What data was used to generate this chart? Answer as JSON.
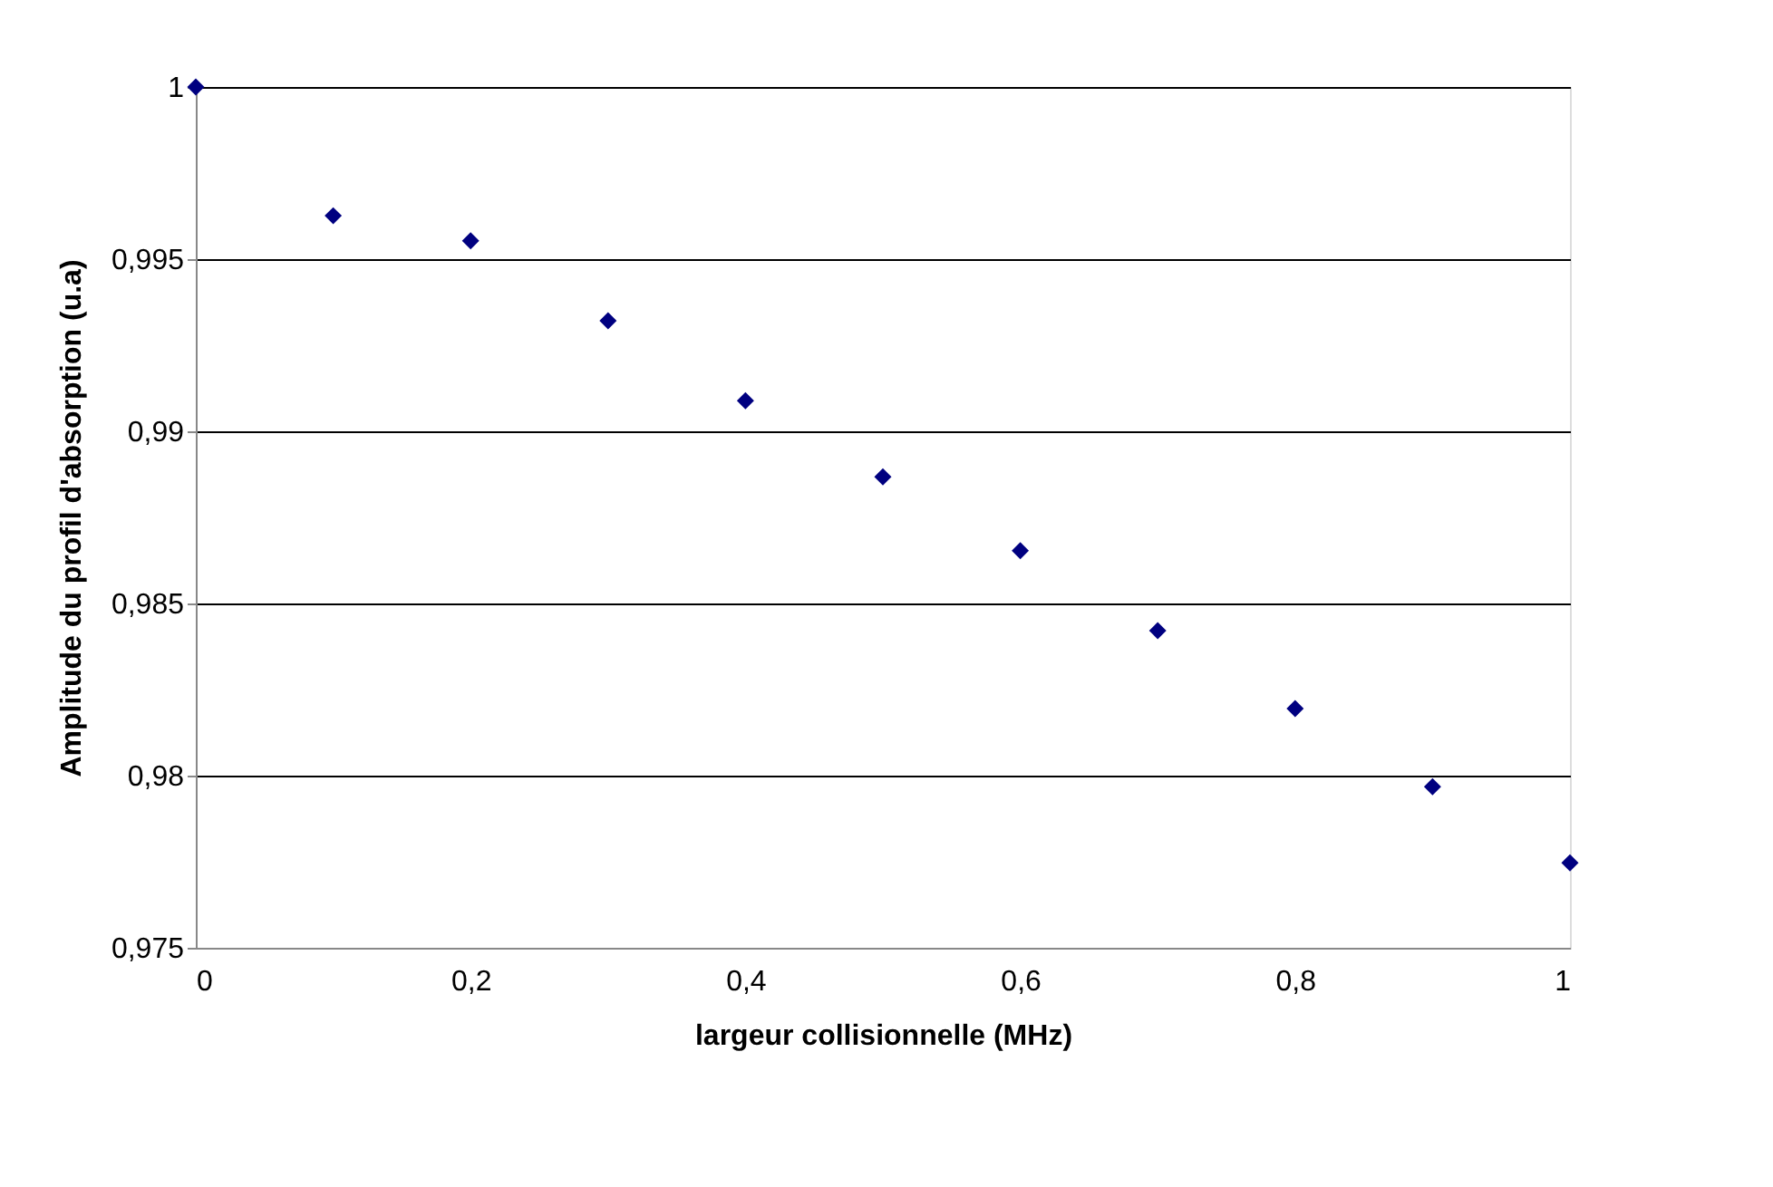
{
  "chart_data": {
    "type": "scatter",
    "xlabel": "largeur collisionnelle  (MHz)",
    "ylabel": "Amplitude du profil d'absorption (u.a)",
    "x": [
      0,
      0.1,
      0.2,
      0.3,
      0.4,
      0.5,
      0.6,
      0.7,
      0.8,
      0.9,
      1
    ],
    "series": [
      {
        "color": "#000080",
        "values": [
          1,
          0.99626,
          0.99553,
          0.99321,
          0.99089,
          0.98868,
          0.98653,
          0.98421,
          0.98195,
          0.97968,
          0.97747
        ]
      }
    ],
    "xlim": [
      0,
      1
    ],
    "ylim": [
      0.975,
      1
    ],
    "xticks": [
      0,
      {
        "value": 0.2,
        "label": "0,2"
      },
      {
        "value": 0.4,
        "label": "0,4"
      },
      {
        "value": 0.6,
        "label": "0,6"
      },
      {
        "value": 0.8,
        "label": "0,8"
      },
      1
    ],
    "yticks": [
      {
        "value": 0.975,
        "label": "0,975"
      },
      {
        "value": 0.98,
        "label": "0,98"
      },
      {
        "value": 0.985,
        "label": "0,985"
      },
      {
        "value": 0.99,
        "label": "0,99"
      },
      {
        "value": 0.995,
        "label": "0,995"
      },
      1
    ],
    "grid": "y",
    "marker": "diamond"
  }
}
